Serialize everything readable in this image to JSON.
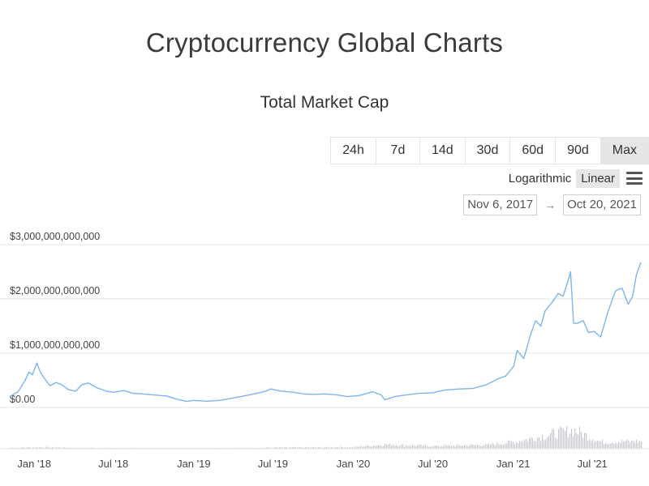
{
  "header": {
    "title": "Cryptocurrency Global Charts"
  },
  "range_buttons": [
    {
      "label": "24h",
      "active": false
    },
    {
      "label": "7d",
      "active": false
    },
    {
      "label": "14d",
      "active": false
    },
    {
      "label": "30d",
      "active": false
    },
    {
      "label": "60d",
      "active": false
    },
    {
      "label": "90d",
      "active": false
    },
    {
      "label": "Max",
      "active": true
    }
  ],
  "scale_toggle": {
    "logarithmic": "Logarithmic",
    "linear": "Linear",
    "selected": "Linear"
  },
  "date_range": {
    "from": "Nov 6, 2017",
    "arrow": "→",
    "to": "Oct 20, 2021"
  },
  "icons": {
    "menu": "hamburger-menu-icon",
    "arrow": "right-arrow-icon"
  },
  "colors": {
    "line": "#7cb5ec",
    "volume": "#c8c8d0",
    "active_button": "#e6e6e6"
  },
  "chart_data": {
    "type": "line",
    "title": "Total Market Cap",
    "xlabel": "",
    "ylabel": "",
    "scale": "linear",
    "grid": true,
    "legend": "none",
    "x_range": [
      "2017-11-06",
      "2021-10-20"
    ],
    "ylim": [
      0,
      3000000000000
    ],
    "y_ticks": [
      "$0.00",
      "$1,000,000,000,000",
      "$2,000,000,000,000",
      "$3,000,000,000,000"
    ],
    "y_tick_values": [
      0,
      1000000000000,
      2000000000000,
      3000000000000
    ],
    "x_ticks": [
      "Jan '18",
      "Jul '18",
      "Jan '19",
      "Jul '19",
      "Jan '20",
      "Jul '20",
      "Jan '21",
      "Jul '21"
    ],
    "x_tick_dates": [
      "2018-01-01",
      "2018-07-01",
      "2019-01-01",
      "2019-07-01",
      "2020-01-01",
      "2020-07-01",
      "2021-01-01",
      "2021-07-01"
    ],
    "series": [
      {
        "x": [
          "2017-11-06",
          "2017-11-25",
          "2017-12-10",
          "2017-12-20",
          "2017-12-28",
          "2018-01-07",
          "2018-01-15",
          "2018-01-22",
          "2018-02-06",
          "2018-02-20",
          "2018-03-05",
          "2018-03-20",
          "2018-04-06",
          "2018-04-20",
          "2018-05-05",
          "2018-05-25",
          "2018-06-15",
          "2018-07-01",
          "2018-07-25",
          "2018-08-15",
          "2018-09-05",
          "2018-10-01",
          "2018-11-01",
          "2018-11-20",
          "2018-12-15",
          "2019-01-01",
          "2019-02-01",
          "2019-03-01",
          "2019-04-05",
          "2019-05-01",
          "2019-05-25",
          "2019-06-15",
          "2019-06-26",
          "2019-07-20",
          "2019-08-15",
          "2019-09-10",
          "2019-10-01",
          "2019-10-27",
          "2019-11-25",
          "2019-12-18",
          "2020-01-15",
          "2020-02-14",
          "2020-03-05",
          "2020-03-13",
          "2020-04-05",
          "2020-05-01",
          "2020-06-01",
          "2020-07-01",
          "2020-07-28",
          "2020-09-01",
          "2020-10-01",
          "2020-11-01",
          "2020-11-25",
          "2020-12-15",
          "2021-01-02",
          "2021-01-10",
          "2021-01-25",
          "2021-02-10",
          "2021-02-21",
          "2021-03-05",
          "2021-03-15",
          "2021-04-01",
          "2021-04-14",
          "2021-04-25",
          "2021-05-05",
          "2021-05-12",
          "2021-05-19",
          "2021-05-28",
          "2021-06-10",
          "2021-06-22",
          "2021-07-05",
          "2021-07-20",
          "2021-08-05",
          "2021-08-23",
          "2021-09-07",
          "2021-09-21",
          "2021-10-01",
          "2021-10-10",
          "2021-10-20"
        ],
        "values": [
          200000000000,
          290000000000,
          480000000000,
          650000000000,
          600000000000,
          820000000000,
          650000000000,
          560000000000,
          400000000000,
          460000000000,
          420000000000,
          330000000000,
          300000000000,
          420000000000,
          450000000000,
          360000000000,
          300000000000,
          280000000000,
          310000000000,
          260000000000,
          250000000000,
          230000000000,
          210000000000,
          160000000000,
          110000000000,
          130000000000,
          115000000000,
          130000000000,
          180000000000,
          220000000000,
          260000000000,
          300000000000,
          340000000000,
          300000000000,
          280000000000,
          250000000000,
          240000000000,
          250000000000,
          230000000000,
          200000000000,
          220000000000,
          290000000000,
          230000000000,
          140000000000,
          200000000000,
          230000000000,
          260000000000,
          270000000000,
          320000000000,
          340000000000,
          350000000000,
          420000000000,
          520000000000,
          580000000000,
          760000000000,
          1050000000000,
          900000000000,
          1350000000000,
          1600000000000,
          1500000000000,
          1780000000000,
          1950000000000,
          2100000000000,
          2050000000000,
          2300000000000,
          2500000000000,
          1550000000000,
          1550000000000,
          1600000000000,
          1380000000000,
          1400000000000,
          1300000000000,
          1750000000000,
          2150000000000,
          2200000000000,
          1900000000000,
          2050000000000,
          2450000000000,
          2670000000000
        ]
      }
    ],
    "volume": {
      "x": [
        "2017-11-06",
        "2018-01-15",
        "2018-06-01",
        "2019-01-01",
        "2019-06-15",
        "2020-01-01",
        "2020-03-13",
        "2020-07-01",
        "2020-11-01",
        "2021-01-10",
        "2021-02-21",
        "2021-05-19",
        "2021-07-20",
        "2021-10-20"
      ],
      "values": [
        0.05,
        0.08,
        0.04,
        0.03,
        0.06,
        0.09,
        0.22,
        0.14,
        0.2,
        0.38,
        0.6,
        1.0,
        0.35,
        0.4
      ]
    }
  }
}
